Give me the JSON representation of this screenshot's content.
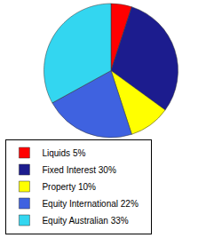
{
  "chart_data": {
    "type": "pie",
    "categories": [
      "Liquids 5%",
      "Fixed Interest 30%",
      "Property 10%",
      "Equity International 22%",
      "Equity Australian 33%"
    ],
    "values": [
      5,
      30,
      10,
      22,
      33
    ],
    "colors": [
      "#ff0000",
      "#1c1c8e",
      "#ffff00",
      "#3f62e0",
      "#33d6f0"
    ],
    "legend": "bottom"
  }
}
